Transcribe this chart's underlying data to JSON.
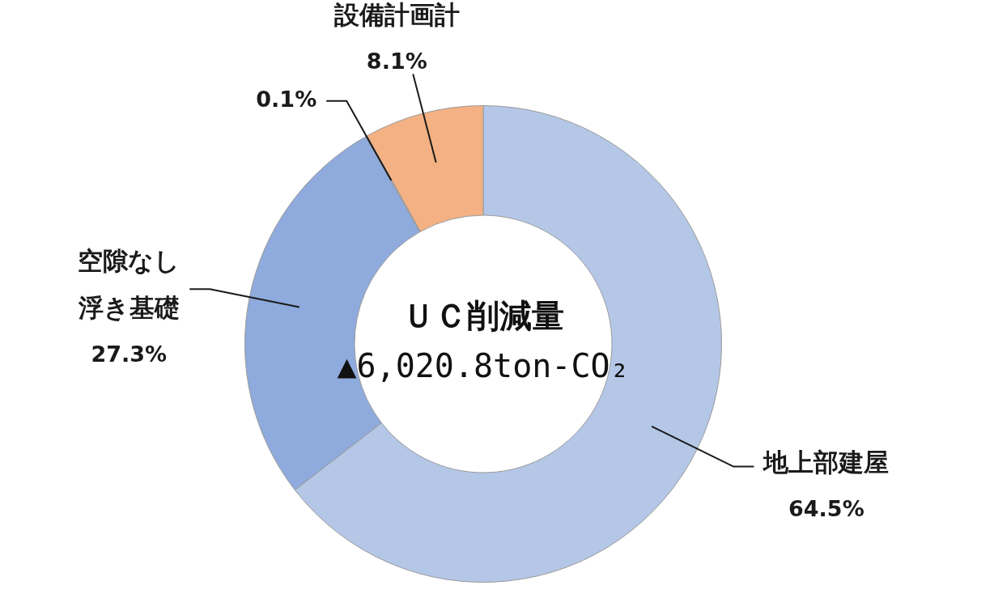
{
  "chart_data": {
    "type": "donut",
    "categories": [
      "地上部建屋",
      "空隙なし浮き基礎",
      null,
      "設備計画計"
    ],
    "values": [
      64.5,
      27.3,
      0.1,
      8.1
    ],
    "colors": [
      "#b4c7e7",
      "#8faadc",
      "#9db5e0",
      "#f4b183"
    ],
    "value_labels": [
      "64.5%",
      "27.3%",
      "0.1%",
      "8.1%"
    ],
    "annotations": [
      "ＵＣ削減量",
      "▲6,020.8ton-CO₂"
    ]
  }
}
